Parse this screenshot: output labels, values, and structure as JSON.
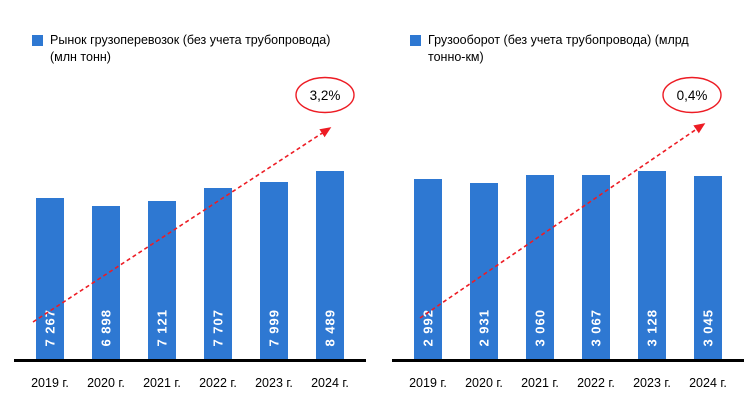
{
  "colors": {
    "bar": "#2e78d2",
    "trend": "#ed1c24",
    "axis": "#000000",
    "bar_value_text": "#ffffff",
    "annotation_text": "#000000"
  },
  "chart_data": [
    {
      "type": "bar",
      "title": "Рынок грузоперевозок (без учета трубопровода) (млн тонн)",
      "legend": "Рынок грузоперевозок (без учета трубопровода) (млн тонн)",
      "legend_position": "top-left",
      "grid": false,
      "categories": [
        "2019 г.",
        "2020 г.",
        "2021 г.",
        "2022 г.",
        "2023 г.",
        "2024 г."
      ],
      "values": [
        7267,
        6898,
        7121,
        7707,
        7999,
        8489
      ],
      "value_labels": [
        "7 267",
        "6 898",
        "7 121",
        "7 707",
        "7 999",
        "8 489"
      ],
      "annotation": "3,2%",
      "annotation_meaning": "growth trend",
      "bar_color": "#2e78d2",
      "xlabel": "",
      "ylabel": "",
      "ylim": [
        0,
        8489
      ]
    },
    {
      "type": "bar",
      "title": "Грузооборот (без учета трубопровода) (млрд тонно-км)",
      "legend": "Грузооборот (без учета трубопровода) (млрд тонно-км)",
      "legend_position": "top-left",
      "grid": false,
      "categories": [
        "2019 г.",
        "2020 г.",
        "2021 г.",
        "2022 г.",
        "2023 г.",
        "2024 г."
      ],
      "values": [
        2992,
        2931,
        3060,
        3067,
        3128,
        3045
      ],
      "value_labels": [
        "2 992",
        "2 931",
        "3 060",
        "3 067",
        "3 128",
        "3 045"
      ],
      "annotation": "0,4%",
      "annotation_meaning": "growth trend",
      "bar_color": "#2e78d2",
      "xlabel": "",
      "ylabel": "",
      "ylim": [
        0,
        3128
      ]
    }
  ]
}
